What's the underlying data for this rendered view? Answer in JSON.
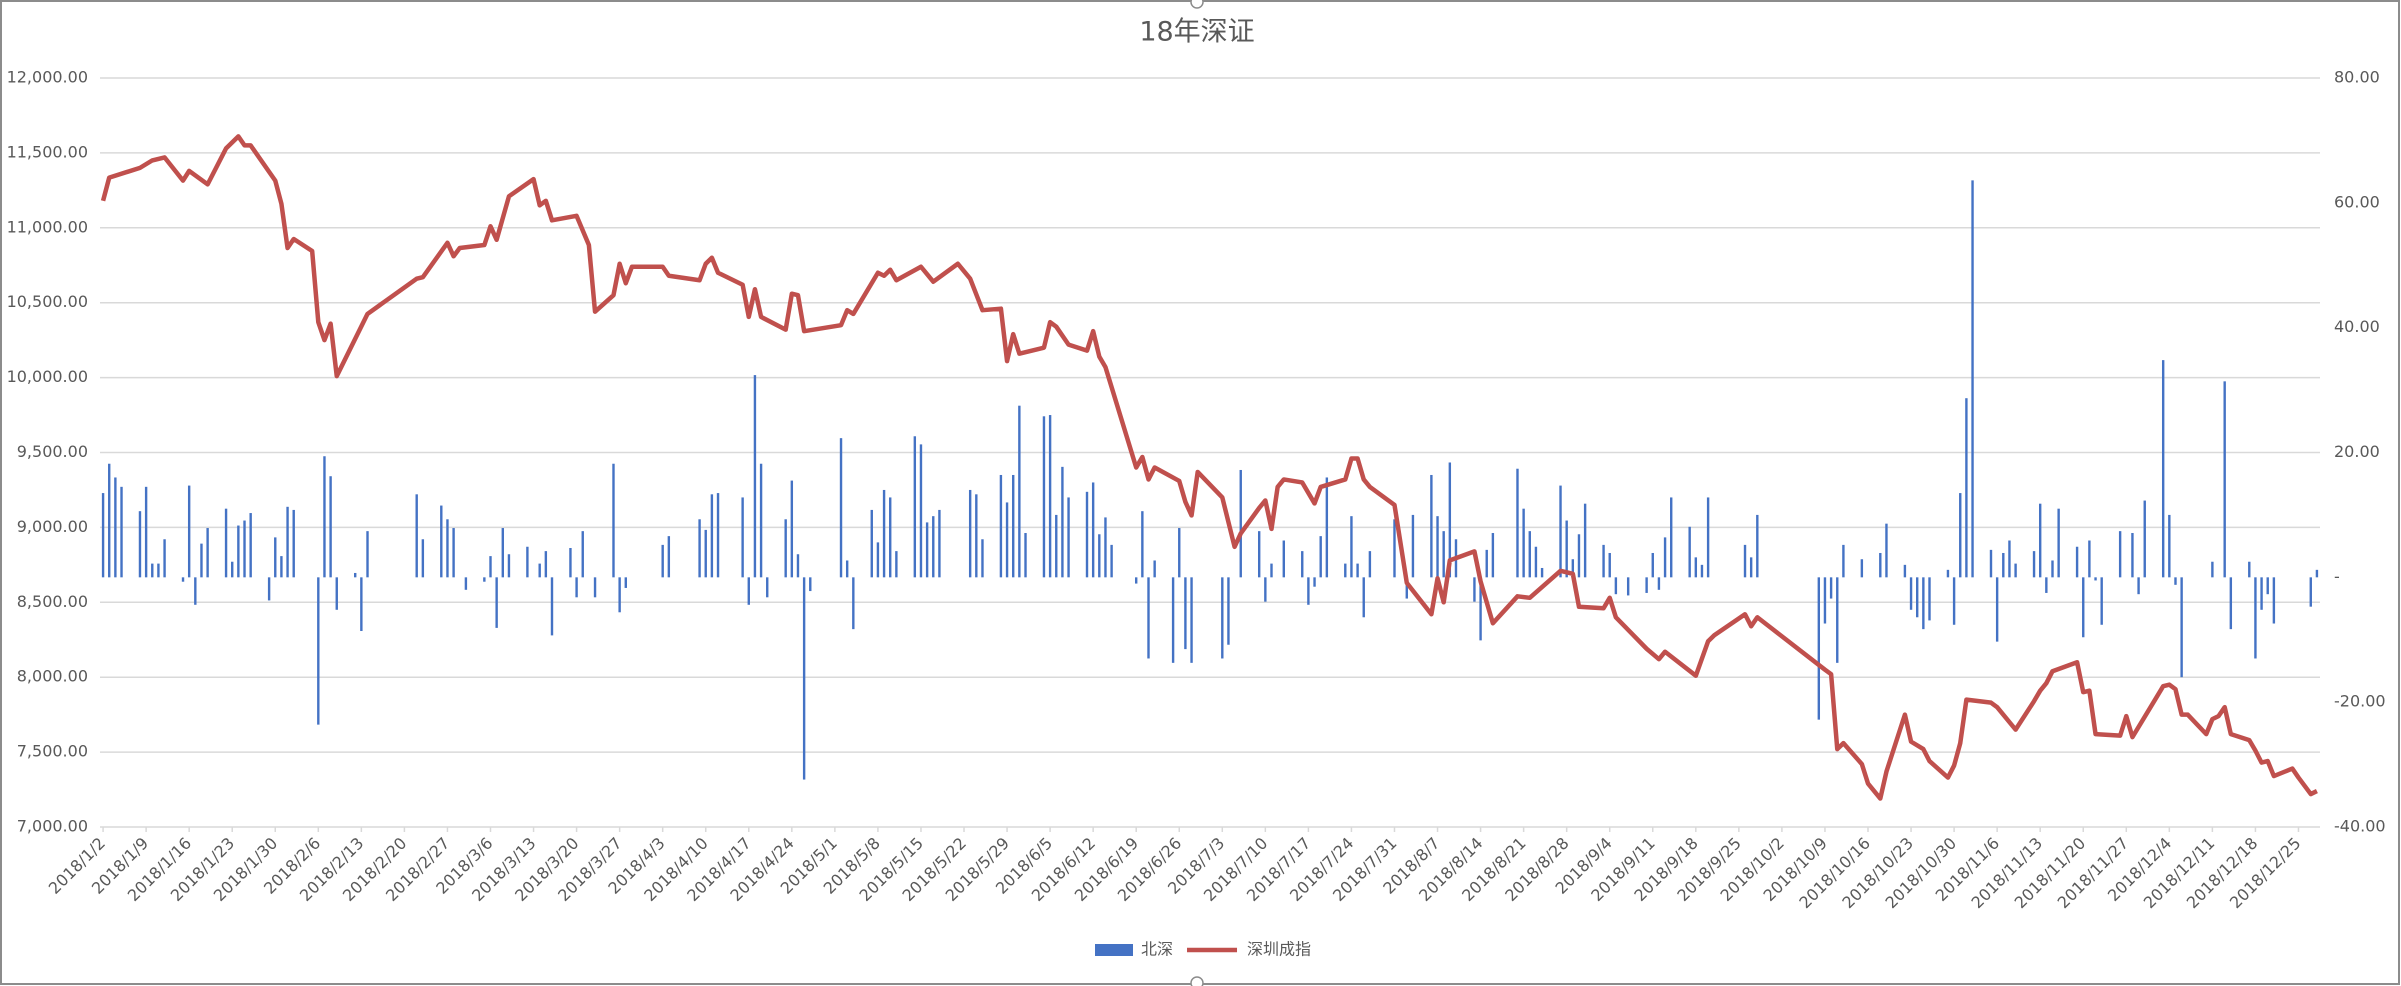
{
  "chart_data": {
    "type": "combo",
    "title": "18年深证",
    "xlim": [
      "2018/1/2",
      "2018/12/28"
    ],
    "xticks": [
      "2018/1/2",
      "2018/1/9",
      "2018/1/16",
      "2018/1/23",
      "2018/1/30",
      "2018/2/6",
      "2018/2/13",
      "2018/2/20",
      "2018/2/27",
      "2018/3/6",
      "2018/3/13",
      "2018/3/20",
      "2018/3/27",
      "2018/4/3",
      "2018/4/10",
      "2018/4/17",
      "2018/4/24",
      "2018/5/1",
      "2018/5/8",
      "2018/5/15",
      "2018/5/22",
      "2018/5/29",
      "2018/6/5",
      "2018/6/12",
      "2018/6/19",
      "2018/6/26",
      "2018/7/3",
      "2018/7/10",
      "2018/7/17",
      "2018/7/24",
      "2018/7/31",
      "2018/8/7",
      "2018/8/14",
      "2018/8/21",
      "2018/8/28",
      "2018/9/4",
      "2018/9/11",
      "2018/9/18",
      "2018/9/25",
      "2018/10/2",
      "2018/10/9",
      "2018/10/16",
      "2018/10/23",
      "2018/10/30",
      "2018/11/6",
      "2018/11/13",
      "2018/11/20",
      "2018/11/27",
      "2018/12/4",
      "2018/12/11",
      "2018/12/18",
      "2018/12/25"
    ],
    "ylim": [
      7000,
      12000
    ],
    "yticks": [
      {
        "value": 7000,
        "label": "7,000.00"
      },
      {
        "value": 7500,
        "label": "7,500.00"
      },
      {
        "value": 8000,
        "label": "8,000.00"
      },
      {
        "value": 8500,
        "label": "8,500.00"
      },
      {
        "value": 9000,
        "label": "9,000.00"
      },
      {
        "value": 9500,
        "label": "9,500.00"
      },
      {
        "value": 10000,
        "label": "10,000.00"
      },
      {
        "value": 10500,
        "label": "10,500.00"
      },
      {
        "value": 11000,
        "label": "11,000.00"
      },
      {
        "value": 11500,
        "label": "11,500.00"
      },
      {
        "value": 12000,
        "label": "12,000.00"
      }
    ],
    "y2lim": [
      -40,
      80
    ],
    "y2ticks": [
      {
        "value": -40,
        "label": "-40.00"
      },
      {
        "value": -20,
        "label": "-20.00"
      },
      {
        "value": 0,
        "label": "-"
      },
      {
        "value": 20,
        "label": "20.00"
      },
      {
        "value": 40,
        "label": "40.00"
      },
      {
        "value": 60,
        "label": "60.00"
      },
      {
        "value": 80,
        "label": "80.00"
      }
    ],
    "grid": true,
    "legend": "bottom",
    "series": [
      {
        "name": "北深",
        "type": "bar",
        "axis": "y2",
        "color": "#4472c4",
        "x": [
          "2018/1/2",
          "2018/1/3",
          "2018/1/4",
          "2018/1/5",
          "2018/1/8",
          "2018/1/9",
          "2018/1/10",
          "2018/1/11",
          "2018/1/12",
          "2018/1/15",
          "2018/1/16",
          "2018/1/17",
          "2018/1/18",
          "2018/1/19",
          "2018/1/22",
          "2018/1/23",
          "2018/1/24",
          "2018/1/25",
          "2018/1/26",
          "2018/1/29",
          "2018/1/30",
          "2018/1/31",
          "2018/2/1",
          "2018/2/2",
          "2018/2/6",
          "2018/2/7",
          "2018/2/8",
          "2018/2/9",
          "2018/2/12",
          "2018/2/13",
          "2018/2/14",
          "2018/2/22",
          "2018/2/23",
          "2018/2/26",
          "2018/2/27",
          "2018/2/28",
          "2018/3/2",
          "2018/3/5",
          "2018/3/6",
          "2018/3/7",
          "2018/3/8",
          "2018/3/9",
          "2018/3/12",
          "2018/3/14",
          "2018/3/15",
          "2018/3/16",
          "2018/3/19",
          "2018/3/20",
          "2018/3/21",
          "2018/3/23",
          "2018/3/26",
          "2018/3/27",
          "2018/3/28",
          "2018/4/3",
          "2018/4/4",
          "2018/4/9",
          "2018/4/10",
          "2018/4/11",
          "2018/4/12",
          "2018/4/16",
          "2018/4/17",
          "2018/4/18",
          "2018/4/19",
          "2018/4/20",
          "2018/4/23",
          "2018/4/24",
          "2018/4/25",
          "2018/4/26",
          "2018/4/27",
          "2018/5/2",
          "2018/5/3",
          "2018/5/4",
          "2018/5/7",
          "2018/5/8",
          "2018/5/9",
          "2018/5/10",
          "2018/5/11",
          "2018/5/14",
          "2018/5/15",
          "2018/5/16",
          "2018/5/17",
          "2018/5/18",
          "2018/5/23",
          "2018/5/24",
          "2018/5/25",
          "2018/5/28",
          "2018/5/29",
          "2018/5/30",
          "2018/5/31",
          "2018/6/1",
          "2018/6/4",
          "2018/6/5",
          "2018/6/6",
          "2018/6/7",
          "2018/6/8",
          "2018/6/11",
          "2018/6/12",
          "2018/6/13",
          "2018/6/14",
          "2018/6/15",
          "2018/6/19",
          "2018/6/20",
          "2018/6/21",
          "2018/6/22",
          "2018/6/25",
          "2018/6/26",
          "2018/6/27",
          "2018/6/28",
          "2018/7/3",
          "2018/7/4",
          "2018/7/6",
          "2018/7/9",
          "2018/7/10",
          "2018/7/11",
          "2018/7/13",
          "2018/7/16",
          "2018/7/17",
          "2018/7/18",
          "2018/7/19",
          "2018/7/20",
          "2018/7/23",
          "2018/7/24",
          "2018/7/25",
          "2018/7/26",
          "2018/7/27",
          "2018/7/31",
          "2018/8/2",
          "2018/8/3",
          "2018/8/6",
          "2018/8/7",
          "2018/8/8",
          "2018/8/9",
          "2018/8/10",
          "2018/8/13",
          "2018/8/14",
          "2018/8/15",
          "2018/8/16",
          "2018/8/20",
          "2018/8/21",
          "2018/8/22",
          "2018/8/23",
          "2018/8/24",
          "2018/8/27",
          "2018/8/28",
          "2018/8/29",
          "2018/8/30",
          "2018/8/31",
          "2018/9/3",
          "2018/9/4",
          "2018/9/5",
          "2018/9/7",
          "2018/9/10",
          "2018/9/11",
          "2018/9/12",
          "2018/9/13",
          "2018/9/14",
          "2018/9/17",
          "2018/9/18",
          "2018/9/19",
          "2018/9/20",
          "2018/9/26",
          "2018/9/27",
          "2018/9/28",
          "2018/10/8",
          "2018/10/9",
          "2018/10/10",
          "2018/10/11",
          "2018/10/12",
          "2018/10/15",
          "2018/10/18",
          "2018/10/19",
          "2018/10/22",
          "2018/10/23",
          "2018/10/24",
          "2018/10/25",
          "2018/10/26",
          "2018/10/29",
          "2018/10/30",
          "2018/10/31",
          "2018/11/1",
          "2018/11/2",
          "2018/11/5",
          "2018/11/6",
          "2018/11/7",
          "2018/11/8",
          "2018/11/9",
          "2018/11/12",
          "2018/11/13",
          "2018/11/14",
          "2018/11/15",
          "2018/11/16",
          "2018/11/19",
          "2018/11/20",
          "2018/11/21",
          "2018/11/22",
          "2018/11/23",
          "2018/11/26",
          "2018/11/28",
          "2018/11/29",
          "2018/11/30",
          "2018/12/3",
          "2018/12/4",
          "2018/12/5",
          "2018/12/6",
          "2018/12/11",
          "2018/12/13",
          "2018/12/14",
          "2018/12/17",
          "2018/12/18",
          "2018/12/19",
          "2018/12/20",
          "2018/12/21",
          "2018/12/27",
          "2018/12/28"
        ],
        "values": [
          13.5,
          18.2,
          16,
          14.5,
          10.6,
          14.5,
          2.2,
          2.2,
          6.1,
          -0.7,
          14.7,
          -4.4,
          5.4,
          7.9,
          11,
          2.5,
          8.3,
          9.1,
          10.3,
          -3.7,
          6.4,
          3.4,
          11.3,
          10.8,
          -23.6,
          19.4,
          16.2,
          -5.2,
          0.7,
          -8.6,
          7.4,
          13.3,
          6.1,
          11.5,
          9.3,
          7.9,
          -2,
          -0.7,
          3.4,
          -8.1,
          7.9,
          3.7,
          4.9,
          2.2,
          4.2,
          -9.3,
          4.7,
          -3.2,
          7.4,
          -3.2,
          18.2,
          -5.6,
          -1.7,
          5.2,
          6.6,
          9.3,
          7.6,
          13.3,
          13.5,
          12.8,
          -4.4,
          32.4,
          18.2,
          -3.2,
          9.3,
          15.5,
          3.7,
          -32.4,
          -2.2,
          22.3,
          2.7,
          -8.3,
          10.8,
          5.6,
          14,
          12.8,
          4.2,
          22.6,
          21.3,
          8.8,
          9.8,
          10.8,
          14,
          13.3,
          6.1,
          16.4,
          12,
          16.4,
          27.5,
          7.1,
          25.8,
          26,
          10,
          17.7,
          12.8,
          13.7,
          15.2,
          6.9,
          9.6,
          5.2,
          -1,
          10.6,
          -13,
          2.7,
          -13.7,
          7.9,
          -11.5,
          -13.7,
          -13,
          -10.8,
          17.2,
          7.4,
          -3.9,
          2.2,
          5.9,
          4.2,
          -4.4,
          -1.5,
          6.6,
          16,
          2.2,
          9.8,
          2.2,
          -6.4,
          4.2,
          9.3,
          -3.4,
          10,
          16.4,
          9.8,
          7.4,
          18.4,
          6.1,
          -3.9,
          -10.1,
          4.4,
          7.1,
          17.4,
          11,
          7.4,
          4.9,
          1.5,
          14.7,
          9.1,
          2.9,
          6.9,
          11.8,
          5.2,
          3.9,
          -2.7,
          -2.9,
          -2.5,
          3.9,
          -2,
          6.4,
          12.8,
          8.1,
          3.2,
          2,
          12.8,
          5.2,
          3.2,
          10,
          -22.8,
          -7.4,
          -3.4,
          -13.7,
          5.2,
          2.9,
          3.9,
          8.6,
          2,
          -5.2,
          -6.4,
          -8.3,
          -6.9,
          1.2,
          -7.6,
          13.5,
          28.7,
          63.6,
          4.4,
          -10.3,
          3.9,
          5.9,
          2.2,
          4.2,
          11.8,
          -2.5,
          2.7,
          11,
          4.9,
          -9.6,
          5.9,
          -0.5,
          -7.6,
          7.4,
          7.1,
          -2.7,
          12.3,
          34.8,
          10,
          -1.2,
          -16,
          2.5,
          31.4,
          -8.3,
          2.5,
          -13,
          -5.2,
          -2.7,
          -7.4,
          -4.7,
          1.2
        ]
      },
      {
        "name": "深圳成指",
        "type": "line",
        "color": "#c0504d",
        "x": [
          "2018/1/2",
          "2018/1/3",
          "2018/1/8",
          "2018/1/10",
          "2018/1/12",
          "2018/1/15",
          "2018/1/16",
          "2018/1/19",
          "2018/1/22",
          "2018/1/24",
          "2018/1/25",
          "2018/1/26",
          "2018/1/30",
          "2018/1/31",
          "2018/2/1",
          "2018/2/2",
          "2018/2/5",
          "2018/2/6",
          "2018/2/7",
          "2018/2/8",
          "2018/2/9",
          "2018/2/14",
          "2018/2/22",
          "2018/2/23",
          "2018/2/27",
          "2018/2/28",
          "2018/3/1",
          "2018/3/5",
          "2018/3/6",
          "2018/3/7",
          "2018/3/9",
          "2018/3/13",
          "2018/3/14",
          "2018/3/15",
          "2018/3/16",
          "2018/3/20",
          "2018/3/22",
          "2018/3/23",
          "2018/3/26",
          "2018/3/27",
          "2018/3/28",
          "2018/3/29",
          "2018/4/3",
          "2018/4/4",
          "2018/4/9",
          "2018/4/10",
          "2018/4/11",
          "2018/4/12",
          "2018/4/16",
          "2018/4/17",
          "2018/4/18",
          "2018/4/19",
          "2018/4/23",
          "2018/4/24",
          "2018/4/25",
          "2018/4/26",
          "2018/5/2",
          "2018/5/3",
          "2018/5/4",
          "2018/5/8",
          "2018/5/9",
          "2018/5/10",
          "2018/5/11",
          "2018/5/15",
          "2018/5/17",
          "2018/5/21",
          "2018/5/23",
          "2018/5/25",
          "2018/5/28",
          "2018/5/29",
          "2018/5/30",
          "2018/5/31",
          "2018/6/4",
          "2018/6/5",
          "2018/6/6",
          "2018/6/8",
          "2018/6/11",
          "2018/6/12",
          "2018/6/13",
          "2018/6/14",
          "2018/6/19",
          "2018/6/20",
          "2018/6/21",
          "2018/6/22",
          "2018/6/26",
          "2018/6/27",
          "2018/6/28",
          "2018/6/29",
          "2018/7/3",
          "2018/7/5",
          "2018/7/6",
          "2018/7/9",
          "2018/7/10",
          "2018/7/11",
          "2018/7/12",
          "2018/7/13",
          "2018/7/16",
          "2018/7/18",
          "2018/7/19",
          "2018/7/23",
          "2018/7/24",
          "2018/7/25",
          "2018/7/26",
          "2018/7/27",
          "2018/7/31",
          "2018/8/2",
          "2018/8/6",
          "2018/8/7",
          "2018/8/8",
          "2018/8/9",
          "2018/8/13",
          "2018/8/14",
          "2018/8/16",
          "2018/8/20",
          "2018/8/22",
          "2018/8/27",
          "2018/8/29",
          "2018/8/30",
          "2018/9/3",
          "2018/9/4",
          "2018/9/5",
          "2018/9/10",
          "2018/9/12",
          "2018/9/13",
          "2018/9/18",
          "2018/9/20",
          "2018/9/21",
          "2018/9/26",
          "2018/9/27",
          "2018/9/28",
          "2018/10/9",
          "2018/10/10",
          "2018/10/11",
          "2018/10/12",
          "2018/10/15",
          "2018/10/16",
          "2018/10/18",
          "2018/10/19",
          "2018/10/22",
          "2018/10/23",
          "2018/10/25",
          "2018/10/26",
          "2018/10/29",
          "2018/10/30",
          "2018/10/31",
          "2018/11/1",
          "2018/11/5",
          "2018/11/6",
          "2018/11/9",
          "2018/11/12",
          "2018/11/13",
          "2018/11/14",
          "2018/11/15",
          "2018/11/19",
          "2018/11/20",
          "2018/11/21",
          "2018/11/22",
          "2018/11/26",
          "2018/11/27",
          "2018/11/28",
          "2018/12/3",
          "2018/12/4",
          "2018/12/5",
          "2018/12/6",
          "2018/12/7",
          "2018/12/10",
          "2018/12/11",
          "2018/12/12",
          "2018/12/13",
          "2018/12/14",
          "2018/12/17",
          "2018/12/18",
          "2018/12/19",
          "2018/12/20",
          "2018/12/21",
          "2018/12/24",
          "2018/12/25",
          "2018/12/27",
          "2018/12/28"
        ],
        "values": [
          11180,
          11335,
          11400,
          11450,
          11470,
          11315,
          11380,
          11290,
          11530,
          11610,
          11550,
          11550,
          11315,
          11160,
          10865,
          10925,
          10845,
          10370,
          10250,
          10360,
          10010,
          10425,
          10660,
          10670,
          10900,
          10810,
          10865,
          10885,
          11010,
          10920,
          11210,
          11325,
          11150,
          11180,
          11050,
          11080,
          10885,
          10440,
          10550,
          10760,
          10630,
          10740,
          10740,
          10680,
          10650,
          10760,
          10800,
          10700,
          10620,
          10405,
          10590,
          10405,
          10320,
          10560,
          10550,
          10310,
          10350,
          10450,
          10425,
          10700,
          10680,
          10720,
          10650,
          10740,
          10640,
          10760,
          10660,
          10450,
          10460,
          10110,
          10290,
          10160,
          10200,
          10370,
          10340,
          10220,
          10180,
          10310,
          10140,
          10070,
          9400,
          9470,
          9320,
          9400,
          9310,
          9170,
          9080,
          9370,
          9200,
          8870,
          8960,
          9130,
          9180,
          8990,
          9270,
          9320,
          9300,
          9160,
          9270,
          9320,
          9460,
          9460,
          9320,
          9270,
          9150,
          8630,
          8420,
          8660,
          8500,
          8780,
          8840,
          8640,
          8360,
          8540,
          8530,
          8710,
          8690,
          8470,
          8460,
          8530,
          8400,
          8190,
          8120,
          8170,
          8010,
          8240,
          8280,
          8420,
          8340,
          8400,
          8050,
          8020,
          7520,
          7560,
          7420,
          7290,
          7190,
          7370,
          7750,
          7570,
          7520,
          7440,
          7330,
          7410,
          7560,
          7850,
          7830,
          7800,
          7650,
          7840,
          7910,
          7960,
          8040,
          8100,
          7900,
          7910,
          7620,
          7610,
          7740,
          7600,
          7940,
          7950,
          7920,
          7750,
          7750,
          7620,
          7720,
          7740,
          7800,
          7620,
          7580,
          7510,
          7430,
          7440,
          7340,
          7390,
          7330,
          7220,
          7240
        ]
      }
    ]
  }
}
